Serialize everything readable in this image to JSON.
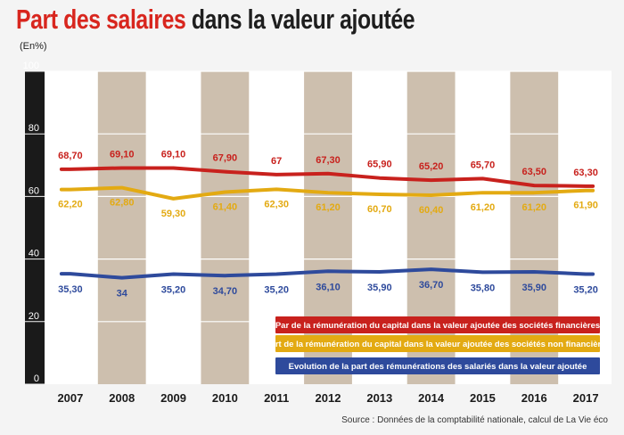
{
  "header": {
    "title_colored": "Part des salaires",
    "title_rest": " dans la valeur ajoutée",
    "unit": "(En%)"
  },
  "footer": {
    "source": "Source : Données de la comptabilité nationale, calcul de La Vie éco"
  },
  "colors": {
    "red": "#c8211d",
    "yellow": "#e3aa12",
    "blue": "#2e4a9c",
    "band": "#cdbfae",
    "title_red": "#d8261e"
  },
  "chart_data": {
    "type": "line",
    "categories": [
      "2007",
      "2008",
      "2009",
      "2010",
      "2011",
      "2012",
      "2013",
      "2014",
      "2015",
      "2016",
      "2017"
    ],
    "ylim": [
      0,
      100
    ],
    "yticks": [
      0,
      20,
      40,
      60,
      80,
      100
    ],
    "grid": true,
    "legend_position": "bottom-right",
    "series": [
      {
        "name": "Par de la rémunération du capital dans la valeur ajoutée des sociétés financières",
        "color": "#c8211d",
        "values": [
          68.7,
          69.1,
          69.1,
          67.9,
          67,
          67.3,
          65.9,
          65.2,
          65.7,
          63.5,
          63.3
        ],
        "labels": [
          "68,70",
          "69,10",
          "69,10",
          "67,90",
          "67",
          "67,30",
          "65,90",
          "65,20",
          "65,70",
          "63,50",
          "63,30"
        ]
      },
      {
        "name": "Part de la rémunération du capital dans la valeur ajoutée des sociétés non financières",
        "color": "#e3aa12",
        "values": [
          62.2,
          62.8,
          59.3,
          61.4,
          62.3,
          61.2,
          60.7,
          60.4,
          61.2,
          61.2,
          61.9
        ],
        "labels": [
          "62,20",
          "62,80",
          "59,30",
          "61,40",
          "62,30",
          "61,20",
          "60,70",
          "60,40",
          "61,20",
          "61,20",
          "61,90"
        ]
      },
      {
        "name": "Evolution de la part des rémunérations des salariés dans la valeur ajoutée",
        "color": "#2e4a9c",
        "values": [
          35.3,
          34,
          35.2,
          34.7,
          35.2,
          36.1,
          35.9,
          36.7,
          35.8,
          35.9,
          35.2
        ],
        "labels": [
          "35,30",
          "34",
          "35,20",
          "34,70",
          "35,20",
          "36,10",
          "35,90",
          "36,70",
          "35,80",
          "35,90",
          "35,20"
        ]
      }
    ]
  }
}
